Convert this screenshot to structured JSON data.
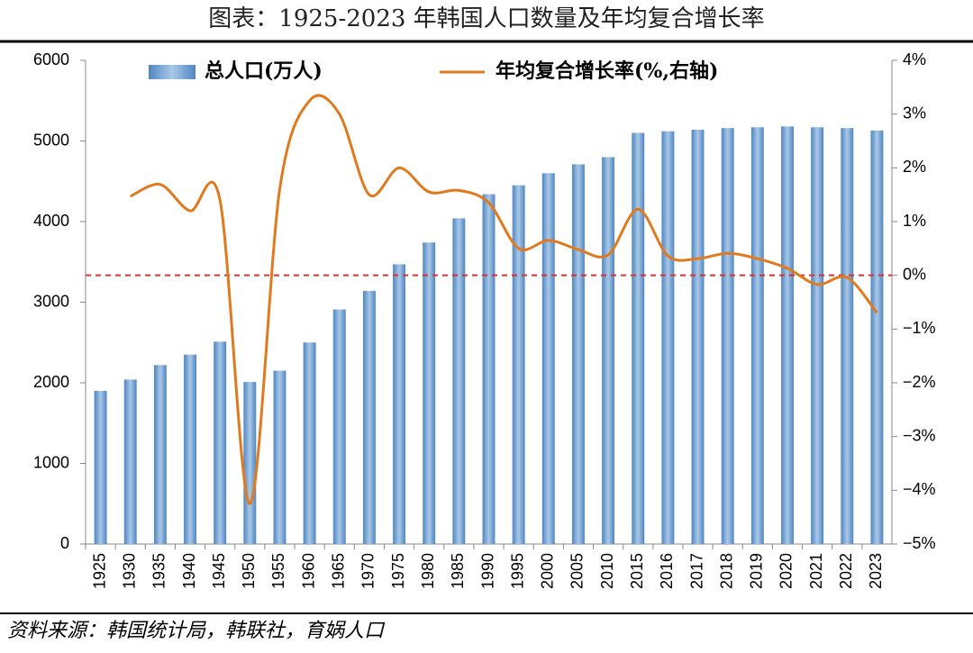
{
  "chart_data": {
    "type": "bar-line",
    "title": "图表：1925-2023 年韩国人口数量及年均复合增长率",
    "source": "资料来源：韩国统计局，韩联社，育娲人口",
    "categories": [
      "1925",
      "1930",
      "1935",
      "1940",
      "1945",
      "1950",
      "1955",
      "1960",
      "1965",
      "1970",
      "1975",
      "1980",
      "1985",
      "1990",
      "1995",
      "2000",
      "2005",
      "2010",
      "2015",
      "2016",
      "2017",
      "2018",
      "2019",
      "2020",
      "2021",
      "2022",
      "2023"
    ],
    "series": [
      {
        "name": "总人口(万人)",
        "type": "bar",
        "color": "#4f86c0",
        "axis": "y",
        "values": [
          1900,
          2040,
          2220,
          2350,
          2510,
          2010,
          2150,
          2500,
          2910,
          3140,
          3470,
          3740,
          4040,
          4340,
          4450,
          4600,
          4710,
          4800,
          5100,
          5120,
          5140,
          5160,
          5170,
          5180,
          5170,
          5160,
          5130
        ]
      },
      {
        "name": "年均复合增长率(%,右轴)",
        "type": "line",
        "color": "#e07a1f",
        "axis": "y2",
        "values": [
          null,
          1.47,
          1.69,
          1.2,
          1.4,
          -4.25,
          1.6,
          3.25,
          3.0,
          1.5,
          2.0,
          1.55,
          1.58,
          1.35,
          0.5,
          0.65,
          0.48,
          0.38,
          1.23,
          0.36,
          0.31,
          0.41,
          0.31,
          0.13,
          -0.17,
          -0.04,
          -0.7
        ]
      }
    ],
    "ylim": [
      0,
      6000
    ],
    "yticks": [
      0,
      1000,
      2000,
      3000,
      4000,
      5000,
      6000
    ],
    "y2lim": [
      -5,
      4
    ],
    "y2ticks": [
      {
        "value": -5,
        "label": "−5%"
      },
      {
        "value": -4,
        "label": "−4%"
      },
      {
        "value": -3,
        "label": "−3%"
      },
      {
        "value": -2,
        "label": "−2%"
      },
      {
        "value": -1,
        "label": "−1%"
      },
      {
        "value": 0,
        "label": "0%"
      },
      {
        "value": 1,
        "label": "1%"
      },
      {
        "value": 2,
        "label": "2%"
      },
      {
        "value": 3,
        "label": "3%"
      },
      {
        "value": 4,
        "label": "4%"
      }
    ],
    "reference_line_y2": 0,
    "reference_color": "#e03030"
  }
}
